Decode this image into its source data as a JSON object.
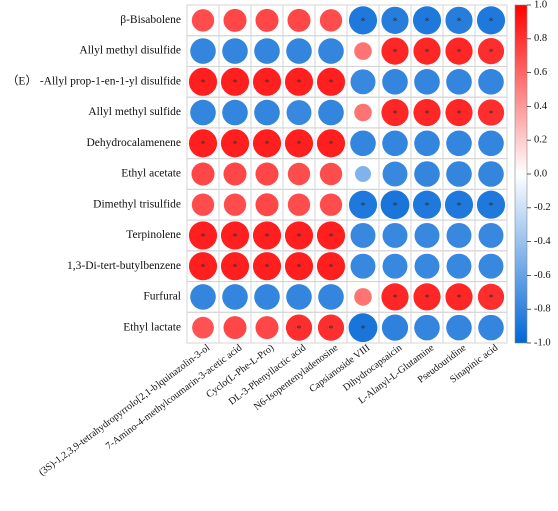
{
  "chart_data": {
    "type": "heatmap",
    "x_categories": [
      "(3S)-1,2,3,9-tetrahydropyrrolo[2,1-b]quinazolin-3-ol",
      "7-Amino-4-methylcoumarin-3-acetic acid",
      "Cyclo(L-Phe-L-Pro)",
      "DL-3-Phenyllactic acid",
      "N6-Isopentenyladenosine",
      "Capsianoside VIII",
      "Dihydrocapsaicin",
      "L-Alanyl-L-Glutamine",
      "Pseudouridine",
      "Sinapinic acid"
    ],
    "y_categories": [
      "β-Bisabolene",
      "Allyl methyl disulfide",
      "（E） -Allyl prop-1-en-1-yl disulfide",
      "Allyl methyl sulfide",
      "Dehydrocalamenene",
      "Ethyl acetate",
      "Dimethyl trisulfide",
      "Terpinolene",
      "1,3-Di-tert-butylbenzene",
      "Furfural",
      "Ethyl lactate"
    ],
    "values": [
      [
        0.7,
        0.72,
        0.72,
        0.72,
        0.7,
        -0.88,
        -0.85,
        -0.88,
        -0.85,
        -0.88
      ],
      [
        -0.8,
        -0.8,
        -0.8,
        -0.8,
        -0.8,
        0.55,
        0.85,
        0.85,
        0.85,
        0.82
      ],
      [
        0.88,
        0.88,
        0.88,
        0.88,
        0.88,
        -0.78,
        -0.8,
        -0.8,
        -0.8,
        -0.8
      ],
      [
        -0.8,
        -0.8,
        -0.8,
        -0.78,
        -0.8,
        0.55,
        0.85,
        0.85,
        0.85,
        0.82
      ],
      [
        0.88,
        0.88,
        0.88,
        0.88,
        0.88,
        -0.8,
        -0.8,
        -0.8,
        -0.8,
        -0.8
      ],
      [
        0.72,
        0.72,
        0.72,
        0.7,
        0.7,
        -0.5,
        -0.78,
        -0.8,
        -0.8,
        -0.8
      ],
      [
        0.7,
        0.7,
        0.72,
        0.7,
        0.7,
        -0.88,
        -0.9,
        -0.88,
        -0.88,
        -0.88
      ],
      [
        0.88,
        0.88,
        0.88,
        0.88,
        0.88,
        -0.78,
        -0.78,
        -0.78,
        -0.78,
        -0.78
      ],
      [
        0.88,
        0.88,
        0.88,
        0.88,
        0.88,
        -0.78,
        -0.78,
        -0.78,
        -0.78,
        -0.78
      ],
      [
        -0.8,
        -0.8,
        -0.8,
        -0.8,
        -0.8,
        0.55,
        0.85,
        0.85,
        0.85,
        0.82
      ],
      [
        0.68,
        0.72,
        0.72,
        0.82,
        0.82,
        -0.9,
        -0.82,
        -0.8,
        -0.8,
        -0.8
      ]
    ],
    "stars": [
      [
        null,
        null,
        null,
        null,
        null,
        "*",
        "*",
        "*",
        "*",
        "*"
      ],
      [
        null,
        null,
        null,
        null,
        null,
        null,
        "*",
        "*",
        "*",
        "*"
      ],
      [
        "*",
        "*",
        "*",
        "*",
        "*",
        null,
        null,
        null,
        null,
        null
      ],
      [
        null,
        null,
        null,
        null,
        null,
        null,
        "*",
        "*",
        "*",
        "*"
      ],
      [
        "*",
        "*",
        "*",
        "*",
        "*",
        null,
        null,
        null,
        null,
        null
      ],
      [
        null,
        null,
        null,
        null,
        null,
        null,
        null,
        null,
        null,
        null
      ],
      [
        null,
        null,
        null,
        null,
        null,
        "*",
        "*",
        "*",
        "*",
        "*"
      ],
      [
        "*",
        "*",
        "*",
        "*",
        "*",
        null,
        null,
        null,
        null,
        null
      ],
      [
        "*",
        "*",
        "*",
        "*",
        "*",
        null,
        null,
        null,
        null,
        null
      ],
      [
        null,
        null,
        null,
        null,
        null,
        null,
        "*",
        "*",
        "*",
        "*"
      ],
      [
        null,
        null,
        null,
        "*",
        "*",
        "*",
        null,
        null,
        null,
        null
      ]
    ],
    "colors": [
      "#0066d6",
      "#ffffff",
      "#ff0000"
    ],
    "clim": [
      -1,
      1
    ],
    "cticks": [
      {
        "value": 1,
        "label": "1.0"
      },
      {
        "value": 0.8,
        "label": "0.8"
      },
      {
        "value": 0.6,
        "label": "0.6"
      },
      {
        "value": 0.4,
        "label": "0.4"
      },
      {
        "value": 0.2,
        "label": "0.2"
      },
      {
        "value": 0,
        "label": "0.0"
      },
      {
        "value": -0.2,
        "label": "-0.2"
      },
      {
        "value": -0.4,
        "label": "-0.4"
      },
      {
        "value": -0.6,
        "label": "-0.6"
      },
      {
        "value": -0.8,
        "label": "-0.8"
      },
      {
        "value": -1,
        "label": "-1.0"
      }
    ]
  }
}
